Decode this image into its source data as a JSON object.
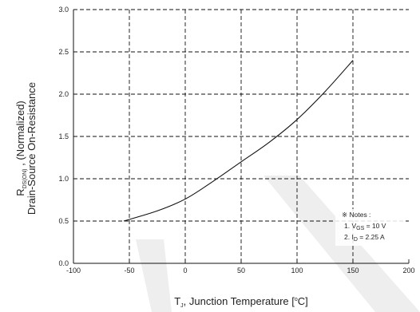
{
  "chart_data": {
    "type": "line",
    "title": "",
    "xlabel": {
      "main": "T",
      "sub": "J",
      "rest": ", Junction Temperature [",
      "sup": "o",
      "end": "C]"
    },
    "ylabel": {
      "line1_main": "R",
      "line1_sub": "DS(ON)",
      "line1_rest": " , (Normalized)",
      "line2": "Drain-Source On-Resistance"
    },
    "xlim": [
      -100,
      200
    ],
    "ylim": [
      0.0,
      3.0
    ],
    "x_ticks": [
      -100,
      -50,
      0,
      50,
      100,
      150,
      200
    ],
    "y_ticks": [
      "0.0",
      "0.5",
      "1.0",
      "1.5",
      "2.0",
      "2.5",
      "3.0"
    ],
    "grid": true,
    "grid_style": "dashed",
    "series": [
      {
        "x": [
          -55,
          -25,
          0,
          25,
          50,
          75,
          100,
          125,
          150
        ],
        "y": [
          0.5,
          0.62,
          0.76,
          0.97,
          1.2,
          1.43,
          1.7,
          2.03,
          2.4
        ]
      }
    ],
    "notes": {
      "heading": "※ Notes :",
      "line1_prefix": "1. V",
      "line1_sub": "GS",
      "line1_rest": " = 10 V",
      "line2_prefix": "2. I",
      "line2_sub": "D",
      "line2_rest": " = 2.25 A",
      "placement": "bottom-right"
    },
    "colors": {
      "line": "#111111",
      "grid": "#111111",
      "watermark": "#e8e8e8"
    }
  }
}
